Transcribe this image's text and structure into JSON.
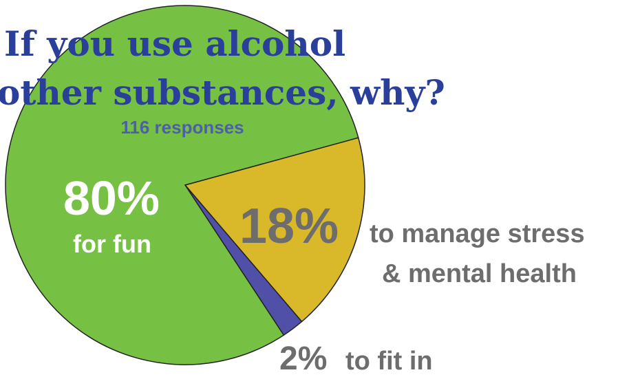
{
  "chart_data": {
    "type": "pie",
    "title_lines": [
      "If you use alcohol",
      "other substances, why?"
    ],
    "subtitle": "116 responses",
    "slices": [
      {
        "value": 80,
        "label_pct": "80%",
        "label": "for fun",
        "color": "#76c043"
      },
      {
        "value": 18,
        "label_pct": "18%",
        "label_lines": [
          "to manage stress",
          "& mental health"
        ],
        "color": "#d9b82a"
      },
      {
        "value": 2,
        "label_pct": "2%",
        "label": "to fit in",
        "color": "#5050a8"
      }
    ]
  }
}
